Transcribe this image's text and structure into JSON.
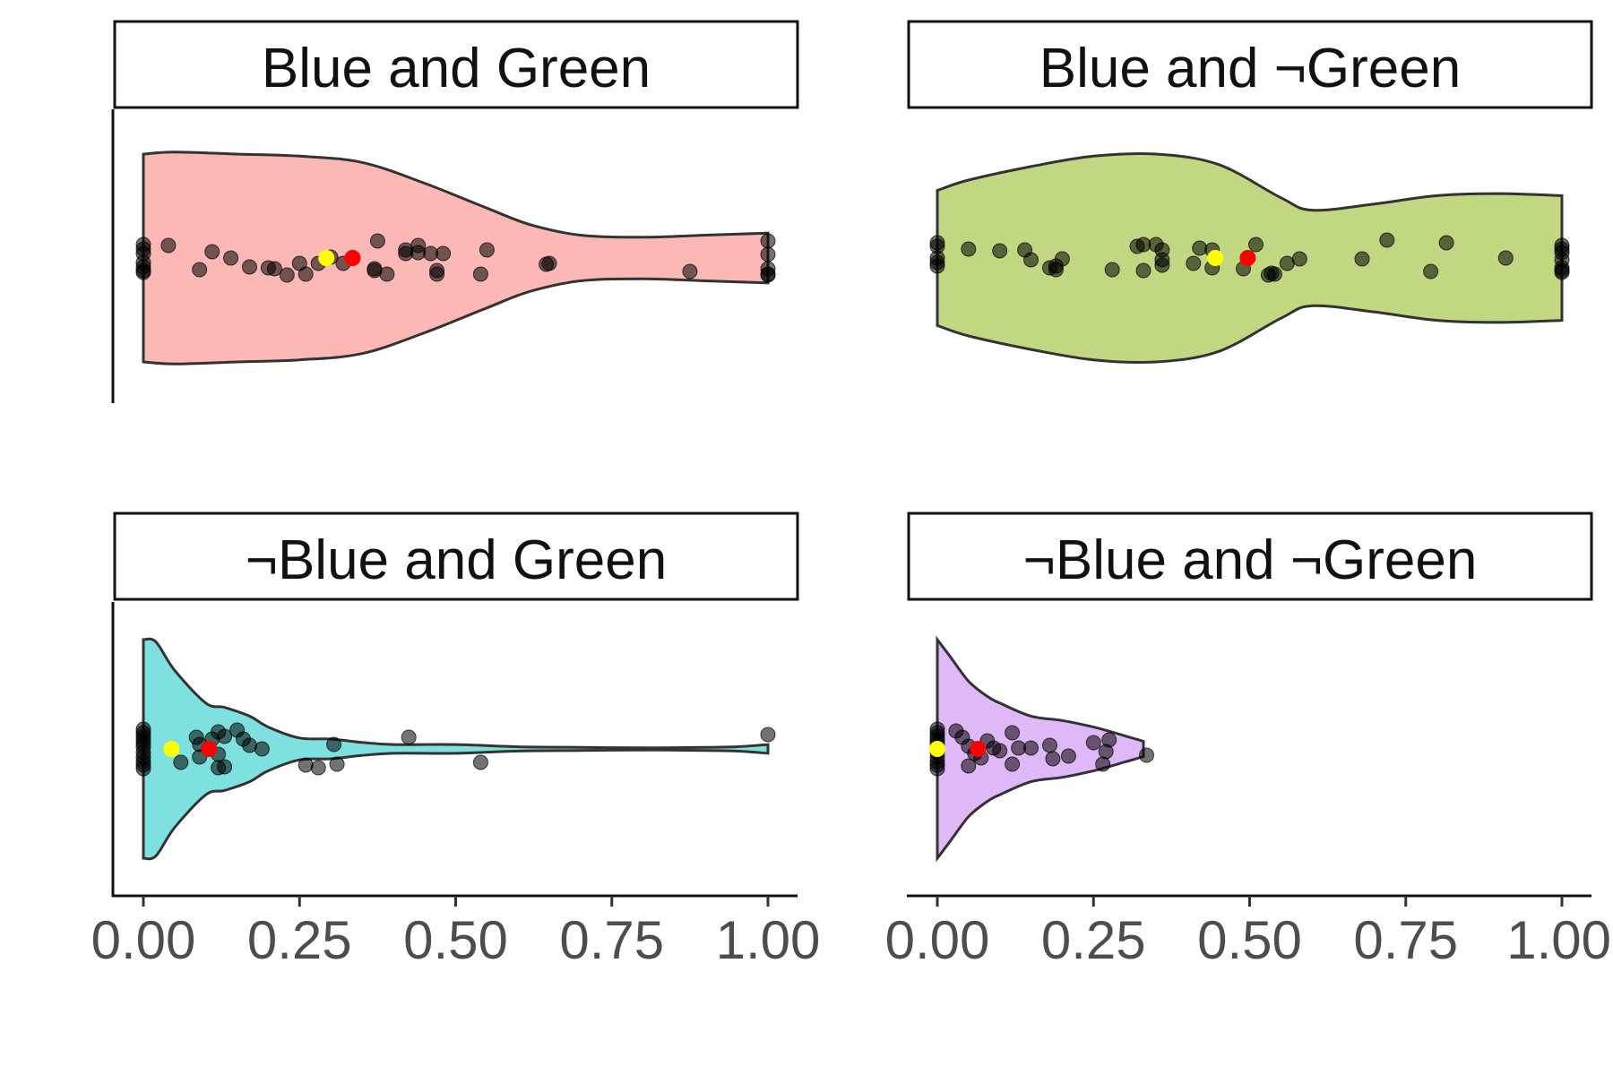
{
  "chart_data": {
    "type": "violin",
    "facet_layout": "2x2",
    "xlim": [
      0,
      1
    ],
    "x_ticks": [
      "0.00",
      "0.25",
      "0.50",
      "0.75",
      "1.00"
    ],
    "legend": "none",
    "grid": false,
    "mean_point_color": "#ff0000",
    "median_point_color": "#ffff00",
    "jitter_point_color": "#000000",
    "panels": [
      {
        "name": "Blue and Green",
        "fill": "#fbb8b5",
        "mean": 0.335,
        "median": 0.293,
        "density": [
          [
            0.0,
            1.0
          ],
          [
            0.05,
            1.02
          ],
          [
            0.15,
            1.0
          ],
          [
            0.25,
            0.98
          ],
          [
            0.35,
            0.92
          ],
          [
            0.45,
            0.72
          ],
          [
            0.55,
            0.48
          ],
          [
            0.62,
            0.32
          ],
          [
            0.7,
            0.22
          ],
          [
            0.8,
            0.2
          ],
          [
            0.9,
            0.22
          ],
          [
            1.0,
            0.24
          ]
        ],
        "points": [
          {
            "x": 0.0,
            "j": -0.15
          },
          {
            "x": 0.0,
            "j": -0.1
          },
          {
            "x": 0.0,
            "j": -0.05
          },
          {
            "x": 0.0,
            "j": 0.05
          },
          {
            "x": 0.0,
            "j": 0.1
          },
          {
            "x": 0.0,
            "j": 0.14
          },
          {
            "x": 0.0,
            "j": 0.16
          },
          {
            "x": 0.04,
            "j": -0.14
          },
          {
            "x": 0.09,
            "j": 0.13
          },
          {
            "x": 0.11,
            "j": -0.07
          },
          {
            "x": 0.14,
            "j": 0.0
          },
          {
            "x": 0.17,
            "j": 0.1
          },
          {
            "x": 0.2,
            "j": 0.11
          },
          {
            "x": 0.21,
            "j": 0.12
          },
          {
            "x": 0.23,
            "j": 0.19
          },
          {
            "x": 0.25,
            "j": 0.06
          },
          {
            "x": 0.26,
            "j": 0.18
          },
          {
            "x": 0.28,
            "j": 0.06
          },
          {
            "x": 0.3,
            "j": -0.01
          },
          {
            "x": 0.32,
            "j": 0.06
          },
          {
            "x": 0.37,
            "j": 0.12
          },
          {
            "x": 0.37,
            "j": 0.14
          },
          {
            "x": 0.375,
            "j": -0.19
          },
          {
            "x": 0.39,
            "j": 0.18
          },
          {
            "x": 0.42,
            "j": -0.09
          },
          {
            "x": 0.42,
            "j": -0.05
          },
          {
            "x": 0.44,
            "j": -0.14
          },
          {
            "x": 0.44,
            "j": -0.06
          },
          {
            "x": 0.46,
            "j": -0.05
          },
          {
            "x": 0.47,
            "j": 0.14
          },
          {
            "x": 0.47,
            "j": 0.18
          },
          {
            "x": 0.48,
            "j": -0.05
          },
          {
            "x": 0.54,
            "j": 0.18
          },
          {
            "x": 0.55,
            "j": -0.09
          },
          {
            "x": 0.645,
            "j": 0.07
          },
          {
            "x": 0.65,
            "j": 0.06
          },
          {
            "x": 0.875,
            "j": 0.15
          },
          {
            "x": 1.0,
            "j": -0.19
          },
          {
            "x": 1.0,
            "j": -0.04
          },
          {
            "x": 1.0,
            "j": 0.12
          },
          {
            "x": 1.0,
            "j": 0.18
          },
          {
            "x": 1.0,
            "j": 0.19
          }
        ]
      },
      {
        "name": "Blue and ¬Green",
        "fill": "#c1d782",
        "mean": 0.497,
        "median": 0.445,
        "density": [
          [
            0.0,
            0.65
          ],
          [
            0.05,
            0.75
          ],
          [
            0.15,
            0.88
          ],
          [
            0.25,
            0.98
          ],
          [
            0.35,
            1.0
          ],
          [
            0.45,
            0.9
          ],
          [
            0.55,
            0.58
          ],
          [
            0.6,
            0.46
          ],
          [
            0.7,
            0.52
          ],
          [
            0.8,
            0.6
          ],
          [
            0.9,
            0.62
          ],
          [
            1.0,
            0.6
          ]
        ],
        "points": [
          {
            "x": 0.0,
            "j": -0.17
          },
          {
            "x": 0.0,
            "j": -0.13
          },
          {
            "x": 0.0,
            "j": 0.0
          },
          {
            "x": 0.0,
            "j": 0.05
          },
          {
            "x": 0.0,
            "j": 0.09
          },
          {
            "x": 0.05,
            "j": -0.1
          },
          {
            "x": 0.1,
            "j": -0.08
          },
          {
            "x": 0.14,
            "j": -0.09
          },
          {
            "x": 0.15,
            "j": 0.02
          },
          {
            "x": 0.18,
            "j": 0.11
          },
          {
            "x": 0.19,
            "j": 0.09
          },
          {
            "x": 0.19,
            "j": 0.13
          },
          {
            "x": 0.2,
            "j": 0.01
          },
          {
            "x": 0.28,
            "j": 0.13
          },
          {
            "x": 0.32,
            "j": -0.13
          },
          {
            "x": 0.33,
            "j": -0.15
          },
          {
            "x": 0.33,
            "j": 0.14
          },
          {
            "x": 0.35,
            "j": -0.15
          },
          {
            "x": 0.36,
            "j": -0.09
          },
          {
            "x": 0.36,
            "j": 0.02
          },
          {
            "x": 0.36,
            "j": 0.08
          },
          {
            "x": 0.41,
            "j": 0.06
          },
          {
            "x": 0.42,
            "j": -0.11
          },
          {
            "x": 0.44,
            "j": -0.09
          },
          {
            "x": 0.44,
            "j": 0.11
          },
          {
            "x": 0.49,
            "j": 0.12
          },
          {
            "x": 0.51,
            "j": -0.15
          },
          {
            "x": 0.53,
            "j": 0.19
          },
          {
            "x": 0.535,
            "j": 0.17
          },
          {
            "x": 0.54,
            "j": 0.18
          },
          {
            "x": 0.56,
            "j": 0.06
          },
          {
            "x": 0.58,
            "j": 0.01
          },
          {
            "x": 0.68,
            "j": 0.01
          },
          {
            "x": 0.72,
            "j": -0.2
          },
          {
            "x": 0.79,
            "j": 0.15
          },
          {
            "x": 0.815,
            "j": -0.17
          },
          {
            "x": 0.91,
            "j": 0.0
          },
          {
            "x": 1.0,
            "j": -0.14
          },
          {
            "x": 1.0,
            "j": -0.1
          },
          {
            "x": 1.0,
            "j": -0.06
          },
          {
            "x": 1.0,
            "j": 0.02
          },
          {
            "x": 1.0,
            "j": 0.11
          },
          {
            "x": 1.0,
            "j": 0.14
          },
          {
            "x": 1.0,
            "j": 0.16
          }
        ]
      },
      {
        "name": "¬Blue and Green",
        "fill": "#7fe0e0",
        "mean": 0.105,
        "median": 0.045,
        "density": [
          [
            0.0,
            1.0
          ],
          [
            0.02,
            0.98
          ],
          [
            0.05,
            0.72
          ],
          [
            0.1,
            0.42
          ],
          [
            0.13,
            0.38
          ],
          [
            0.17,
            0.3
          ],
          [
            0.2,
            0.2
          ],
          [
            0.25,
            0.1
          ],
          [
            0.3,
            0.09
          ],
          [
            0.35,
            0.06
          ],
          [
            0.4,
            0.04
          ],
          [
            0.5,
            0.04
          ],
          [
            0.6,
            0.02
          ],
          [
            0.7,
            0.015
          ],
          [
            0.8,
            0.01
          ],
          [
            0.9,
            0.015
          ],
          [
            0.95,
            0.02
          ],
          [
            1.0,
            0.04
          ]
        ],
        "points": [
          {
            "x": 0.0,
            "j": -0.22
          },
          {
            "x": 0.0,
            "j": -0.18
          },
          {
            "x": 0.0,
            "j": -0.14
          },
          {
            "x": 0.0,
            "j": -0.1
          },
          {
            "x": 0.0,
            "j": -0.06
          },
          {
            "x": 0.0,
            "j": -0.02
          },
          {
            "x": 0.0,
            "j": 0.04
          },
          {
            "x": 0.0,
            "j": 0.09
          },
          {
            "x": 0.0,
            "j": 0.14
          },
          {
            "x": 0.0,
            "j": 0.18
          },
          {
            "x": 0.0,
            "j": 0.22
          },
          {
            "x": 0.06,
            "j": 0.15
          },
          {
            "x": 0.085,
            "j": -0.13
          },
          {
            "x": 0.09,
            "j": -0.05
          },
          {
            "x": 0.09,
            "j": 0.09
          },
          {
            "x": 0.11,
            "j": -0.11
          },
          {
            "x": 0.12,
            "j": -0.19
          },
          {
            "x": 0.12,
            "j": 0.06
          },
          {
            "x": 0.13,
            "j": -0.14
          },
          {
            "x": 0.12,
            "j": 0.21
          },
          {
            "x": 0.13,
            "j": 0.2
          },
          {
            "x": 0.15,
            "j": -0.21
          },
          {
            "x": 0.16,
            "j": -0.11
          },
          {
            "x": 0.17,
            "j": -0.04
          },
          {
            "x": 0.19,
            "j": 0.0
          },
          {
            "x": 0.26,
            "j": 0.18
          },
          {
            "x": 0.28,
            "j": 0.21
          },
          {
            "x": 0.305,
            "j": -0.05
          },
          {
            "x": 0.31,
            "j": 0.17
          },
          {
            "x": 0.425,
            "j": -0.13
          },
          {
            "x": 0.54,
            "j": 0.15
          },
          {
            "x": 1.0,
            "j": -0.16
          }
        ]
      },
      {
        "name": "¬Blue and ¬Green",
        "fill": "#dfb8f8",
        "mean": 0.065,
        "median": 0.0,
        "density": [
          [
            0.0,
            1.0
          ],
          [
            0.02,
            0.85
          ],
          [
            0.05,
            0.62
          ],
          [
            0.08,
            0.48
          ],
          [
            0.1,
            0.42
          ],
          [
            0.15,
            0.3
          ],
          [
            0.2,
            0.26
          ],
          [
            0.25,
            0.2
          ],
          [
            0.3,
            0.12
          ],
          [
            0.33,
            0.07
          ]
        ],
        "points": [
          {
            "x": 0.0,
            "j": -0.22
          },
          {
            "x": 0.0,
            "j": -0.18
          },
          {
            "x": 0.0,
            "j": -0.14
          },
          {
            "x": 0.0,
            "j": -0.1
          },
          {
            "x": 0.0,
            "j": -0.06
          },
          {
            "x": 0.0,
            "j": -0.02
          },
          {
            "x": 0.0,
            "j": 0.04
          },
          {
            "x": 0.0,
            "j": 0.09
          },
          {
            "x": 0.0,
            "j": 0.14
          },
          {
            "x": 0.0,
            "j": 0.18
          },
          {
            "x": 0.0,
            "j": 0.22
          },
          {
            "x": 0.03,
            "j": -0.2
          },
          {
            "x": 0.04,
            "j": -0.13
          },
          {
            "x": 0.05,
            "j": -0.03
          },
          {
            "x": 0.06,
            "j": 0.05
          },
          {
            "x": 0.07,
            "j": 0.1
          },
          {
            "x": 0.08,
            "j": -0.09
          },
          {
            "x": 0.09,
            "j": -0.01
          },
          {
            "x": 0.1,
            "j": 0.02
          },
          {
            "x": 0.12,
            "j": -0.18
          },
          {
            "x": 0.12,
            "j": 0.17
          },
          {
            "x": 0.05,
            "j": 0.19
          },
          {
            "x": 0.13,
            "j": -0.01
          },
          {
            "x": 0.15,
            "j": -0.01
          },
          {
            "x": 0.18,
            "j": -0.04
          },
          {
            "x": 0.185,
            "j": 0.11
          },
          {
            "x": 0.21,
            "j": 0.08
          },
          {
            "x": 0.25,
            "j": -0.07
          },
          {
            "x": 0.265,
            "j": 0.17
          },
          {
            "x": 0.27,
            "j": 0.03
          },
          {
            "x": 0.275,
            "j": -0.1
          },
          {
            "x": 0.335,
            "j": 0.07
          }
        ]
      }
    ]
  }
}
